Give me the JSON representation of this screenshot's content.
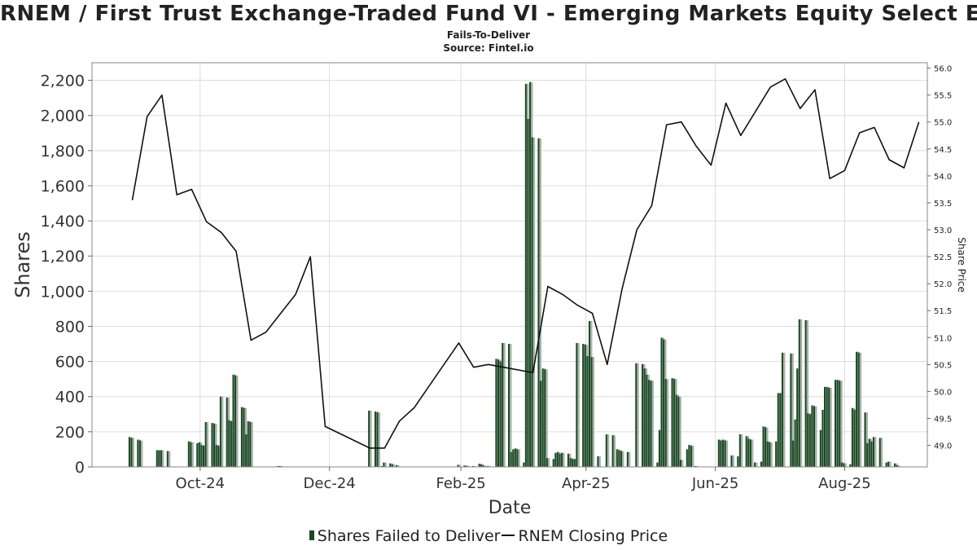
{
  "chart_data": {
    "type": "bar",
    "title": "RNEM / First Trust Exchange-Traded Fund VI - Emerging Markets Equity Select ETF",
    "subtitles": [
      "Fails-To-Deliver",
      "Source: Fintel.io"
    ],
    "xlabel": "Date",
    "ylabel": "Shares",
    "y2label": "Share Price",
    "ylim": [
      0,
      2300
    ],
    "y2lim": [
      48.6,
      56.1
    ],
    "y_ticks": [
      0,
      200,
      400,
      600,
      800,
      1000,
      1200,
      1400,
      1600,
      1800,
      2000,
      2200
    ],
    "y_tick_labels": [
      "0",
      "200",
      "400",
      "600",
      "800",
      "1,000",
      "1,200",
      "1,400",
      "1,600",
      "1,800",
      "2,000",
      "2,200"
    ],
    "y2_ticks": [
      49.0,
      49.5,
      50.0,
      50.5,
      51.0,
      51.5,
      52.0,
      52.5,
      53.0,
      53.5,
      54.0,
      54.5,
      55.0,
      55.5,
      56.0
    ],
    "y2_tick_labels": [
      "49.0",
      "49.5",
      "50.0",
      "50.5",
      "51.0",
      "51.5",
      "52.0",
      "52.5",
      "53.0",
      "53.5",
      "54.0",
      "54.5",
      "55.0",
      "55.5",
      "56.0"
    ],
    "x_range": [
      "2024-08-11",
      "2025-09-09"
    ],
    "x_ticks": [
      {
        "date": "2024-10-01",
        "label": "Oct-24"
      },
      {
        "date": "2024-12-01",
        "label": "Dec-24"
      },
      {
        "date": "2025-02-01",
        "label": "Feb-25"
      },
      {
        "date": "2025-04-01",
        "label": "Apr-25"
      },
      {
        "date": "2025-06-01",
        "label": "Jun-25"
      },
      {
        "date": "2025-08-01",
        "label": "Aug-25"
      }
    ],
    "grid": true,
    "legend_position": "bottom",
    "series": [
      {
        "name": "Shares Failed to Deliver",
        "type": "bar",
        "color": "#1a4a23",
        "points": [
          [
            "2024-08-29",
            170
          ],
          [
            "2024-08-30",
            165
          ],
          [
            "2024-09-02",
            155
          ],
          [
            "2024-09-03",
            150
          ],
          [
            "2024-09-11",
            95
          ],
          [
            "2024-09-12",
            95
          ],
          [
            "2024-09-13",
            95
          ],
          [
            "2024-09-16",
            90
          ],
          [
            "2024-09-26",
            145
          ],
          [
            "2024-09-27",
            140
          ],
          [
            "2024-09-30",
            135
          ],
          [
            "2024-10-01",
            140
          ],
          [
            "2024-10-02",
            125
          ],
          [
            "2024-10-03",
            120
          ],
          [
            "2024-10-04",
            255
          ],
          [
            "2024-10-07",
            250
          ],
          [
            "2024-10-08",
            245
          ],
          [
            "2024-10-09",
            125
          ],
          [
            "2024-10-10",
            120
          ],
          [
            "2024-10-11",
            400
          ],
          [
            "2024-10-14",
            395
          ],
          [
            "2024-10-15",
            265
          ],
          [
            "2024-10-16",
            260
          ],
          [
            "2024-10-17",
            525
          ],
          [
            "2024-10-18",
            520
          ],
          [
            "2024-10-21",
            340
          ],
          [
            "2024-10-22",
            335
          ],
          [
            "2024-10-23",
            185
          ],
          [
            "2024-10-24",
            260
          ],
          [
            "2024-10-25",
            255
          ],
          [
            "2024-11-07",
            5
          ],
          [
            "2024-11-08",
            5
          ],
          [
            "2024-12-20",
            320
          ],
          [
            "2024-12-23",
            315
          ],
          [
            "2024-12-24",
            310
          ],
          [
            "2024-12-26",
            5
          ],
          [
            "2024-12-27",
            25
          ],
          [
            "2024-12-30",
            20
          ],
          [
            "2024-12-31",
            15
          ],
          [
            "2025-01-02",
            10
          ],
          [
            "2025-01-31",
            12
          ],
          [
            "2025-02-03",
            8
          ],
          [
            "2025-02-04",
            6
          ],
          [
            "2025-02-07",
            5
          ],
          [
            "2025-02-10",
            18
          ],
          [
            "2025-02-11",
            14
          ],
          [
            "2025-02-12",
            8
          ],
          [
            "2025-02-14",
            5
          ],
          [
            "2025-02-18",
            615
          ],
          [
            "2025-02-19",
            610
          ],
          [
            "2025-02-20",
            600
          ],
          [
            "2025-02-21",
            705
          ],
          [
            "2025-02-24",
            700
          ],
          [
            "2025-02-25",
            85
          ],
          [
            "2025-02-26",
            100
          ],
          [
            "2025-02-27",
            105
          ],
          [
            "2025-02-28",
            100
          ],
          [
            "2025-03-03",
            25
          ],
          [
            "2025-03-04",
            2180
          ],
          [
            "2025-03-05",
            1980
          ],
          [
            "2025-03-06",
            2190
          ],
          [
            "2025-03-07",
            1875
          ],
          [
            "2025-03-10",
            1870
          ],
          [
            "2025-03-11",
            490
          ],
          [
            "2025-03-12",
            560
          ],
          [
            "2025-03-13",
            555
          ],
          [
            "2025-03-14",
            50
          ],
          [
            "2025-03-17",
            45
          ],
          [
            "2025-03-18",
            80
          ],
          [
            "2025-03-19",
            85
          ],
          [
            "2025-03-20",
            75
          ],
          [
            "2025-03-21",
            80
          ],
          [
            "2025-03-24",
            75
          ],
          [
            "2025-03-25",
            50
          ],
          [
            "2025-03-26",
            45
          ],
          [
            "2025-03-27",
            45
          ],
          [
            "2025-03-28",
            705
          ],
          [
            "2025-03-31",
            700
          ],
          [
            "2025-04-01",
            695
          ],
          [
            "2025-04-02",
            630
          ],
          [
            "2025-04-03",
            830
          ],
          [
            "2025-04-04",
            625
          ],
          [
            "2025-04-07",
            60
          ],
          [
            "2025-04-11",
            185
          ],
          [
            "2025-04-14",
            180
          ],
          [
            "2025-04-16",
            100
          ],
          [
            "2025-04-17",
            95
          ],
          [
            "2025-04-18",
            90
          ],
          [
            "2025-04-21",
            85
          ],
          [
            "2025-04-25",
            590
          ],
          [
            "2025-04-28",
            585
          ],
          [
            "2025-04-29",
            560
          ],
          [
            "2025-04-30",
            525
          ],
          [
            "2025-05-01",
            495
          ],
          [
            "2025-05-02",
            490
          ],
          [
            "2025-05-05",
            25
          ],
          [
            "2025-05-06",
            210
          ],
          [
            "2025-05-07",
            735
          ],
          [
            "2025-05-08",
            725
          ],
          [
            "2025-05-09",
            500
          ],
          [
            "2025-05-12",
            505
          ],
          [
            "2025-05-13",
            500
          ],
          [
            "2025-05-14",
            410
          ],
          [
            "2025-05-15",
            400
          ],
          [
            "2025-05-16",
            40
          ],
          [
            "2025-05-19",
            100
          ],
          [
            "2025-05-20",
            125
          ],
          [
            "2025-05-21",
            120
          ],
          [
            "2025-05-23",
            5
          ],
          [
            "2025-06-03",
            155
          ],
          [
            "2025-06-04",
            150
          ],
          [
            "2025-06-05",
            155
          ],
          [
            "2025-06-06",
            150
          ],
          [
            "2025-06-09",
            65
          ],
          [
            "2025-06-12",
            60
          ],
          [
            "2025-06-13",
            185
          ],
          [
            "2025-06-16",
            175
          ],
          [
            "2025-06-17",
            160
          ],
          [
            "2025-06-18",
            155
          ],
          [
            "2025-06-20",
            25
          ],
          [
            "2025-06-23",
            30
          ],
          [
            "2025-06-24",
            230
          ],
          [
            "2025-06-25",
            225
          ],
          [
            "2025-06-26",
            145
          ],
          [
            "2025-06-27",
            140
          ],
          [
            "2025-06-30",
            145
          ],
          [
            "2025-07-01",
            420
          ],
          [
            "2025-07-02",
            420
          ],
          [
            "2025-07-03",
            650
          ],
          [
            "2025-07-07",
            645
          ],
          [
            "2025-07-08",
            150
          ],
          [
            "2025-07-09",
            270
          ],
          [
            "2025-07-10",
            560
          ],
          [
            "2025-07-11",
            840
          ],
          [
            "2025-07-14",
            835
          ],
          [
            "2025-07-15",
            305
          ],
          [
            "2025-07-16",
            300
          ],
          [
            "2025-07-17",
            350
          ],
          [
            "2025-07-18",
            345
          ],
          [
            "2025-07-21",
            210
          ],
          [
            "2025-07-22",
            325
          ],
          [
            "2025-07-23",
            455
          ],
          [
            "2025-07-24",
            455
          ],
          [
            "2025-07-25",
            450
          ],
          [
            "2025-07-28",
            495
          ],
          [
            "2025-07-29",
            495
          ],
          [
            "2025-07-30",
            490
          ],
          [
            "2025-07-31",
            25
          ],
          [
            "2025-08-01",
            20
          ],
          [
            "2025-08-04",
            15
          ],
          [
            "2025-08-05",
            335
          ],
          [
            "2025-08-06",
            325
          ],
          [
            "2025-08-07",
            655
          ],
          [
            "2025-08-08",
            650
          ],
          [
            "2025-08-11",
            310
          ],
          [
            "2025-08-12",
            135
          ],
          [
            "2025-08-13",
            160
          ],
          [
            "2025-08-14",
            145
          ],
          [
            "2025-08-15",
            170
          ],
          [
            "2025-08-18",
            165
          ],
          [
            "2025-08-21",
            25
          ],
          [
            "2025-08-22",
            30
          ],
          [
            "2025-08-25",
            20
          ],
          [
            "2025-08-26",
            10
          ]
        ]
      },
      {
        "name": "RNEM Closing Price",
        "type": "line",
        "axis": "right",
        "color": "#111111",
        "points": [
          [
            "2024-08-30",
            53.55
          ],
          [
            "2024-09-06",
            55.1
          ],
          [
            "2024-09-13",
            55.5
          ],
          [
            "2024-09-20",
            53.65
          ],
          [
            "2024-09-27",
            53.75
          ],
          [
            "2024-10-04",
            53.15
          ],
          [
            "2024-10-11",
            52.95
          ],
          [
            "2024-10-18",
            52.6
          ],
          [
            "2024-10-25",
            50.95
          ],
          [
            "2024-11-01",
            51.1
          ],
          [
            "2024-11-08",
            51.45
          ],
          [
            "2024-11-15",
            51.8
          ],
          [
            "2024-11-22",
            52.5
          ],
          [
            "2024-11-29",
            49.35
          ],
          [
            "2024-12-20",
            48.95
          ],
          [
            "2024-12-27",
            48.95
          ],
          [
            "2025-01-03",
            49.45
          ],
          [
            "2025-01-10",
            49.7
          ],
          [
            "2025-01-17",
            50.1
          ],
          [
            "2025-01-24",
            50.5
          ],
          [
            "2025-01-31",
            50.9
          ],
          [
            "2025-02-07",
            50.45
          ],
          [
            "2025-02-14",
            50.5
          ],
          [
            "2025-02-28",
            50.4
          ],
          [
            "2025-03-07",
            50.35
          ],
          [
            "2025-03-14",
            51.95
          ],
          [
            "2025-03-21",
            51.8
          ],
          [
            "2025-03-28",
            51.6
          ],
          [
            "2025-04-04",
            51.45
          ],
          [
            "2025-04-11",
            50.5
          ],
          [
            "2025-04-18",
            51.9
          ],
          [
            "2025-04-25",
            53.0
          ],
          [
            "2025-05-02",
            53.45
          ],
          [
            "2025-05-09",
            54.95
          ],
          [
            "2025-05-16",
            55.0
          ],
          [
            "2025-05-23",
            54.55
          ],
          [
            "2025-05-30",
            54.2
          ],
          [
            "2025-06-06",
            55.35
          ],
          [
            "2025-06-13",
            54.75
          ],
          [
            "2025-06-20",
            55.2
          ],
          [
            "2025-06-27",
            55.65
          ],
          [
            "2025-07-04",
            55.8
          ],
          [
            "2025-07-11",
            55.25
          ],
          [
            "2025-07-18",
            55.6
          ],
          [
            "2025-07-25",
            53.95
          ],
          [
            "2025-08-01",
            54.1
          ],
          [
            "2025-08-08",
            54.8
          ],
          [
            "2025-08-15",
            54.9
          ],
          [
            "2025-08-22",
            54.3
          ],
          [
            "2025-08-29",
            54.15
          ],
          [
            "2025-09-05",
            55.0
          ]
        ]
      }
    ]
  }
}
